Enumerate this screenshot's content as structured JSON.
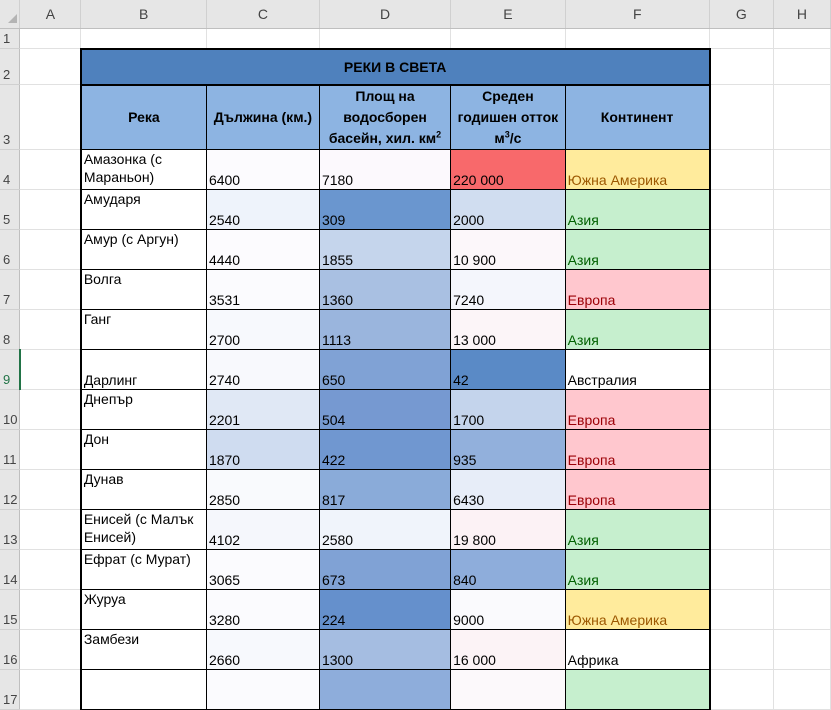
{
  "columns": [
    "A",
    "B",
    "C",
    "D",
    "E",
    "F",
    "G",
    "H"
  ],
  "title": "РЕКИ В СВЕТА",
  "headers": {
    "river": "Река",
    "length": "Дължина (км.)",
    "basin": "Площ на водосборен басейн, хил. км",
    "basin_sup": "2",
    "flow_a": "Среден годишен отток",
    "flow_m": "м",
    "flow_sup": "3",
    "flow_s": "/с",
    "continent": "Континент"
  },
  "continent_styles": {
    "Южна Америка": {
      "bg": "#ffeb9c",
      "fg": "#9c5700"
    },
    "Азия": {
      "bg": "#c6efce",
      "fg": "#006100"
    },
    "Европа": {
      "bg": "#ffc7ce",
      "fg": "#9c0006"
    },
    "Австралия": {
      "bg": "#ffffff",
      "fg": "#000000"
    },
    "Африка": {
      "bg": "#ffffff",
      "fg": "#000000"
    }
  },
  "selected_row": 9,
  "rows": [
    {
      "row": 4,
      "river": "Амазонка (с Мараньон)",
      "length": "6400",
      "basin": "7180",
      "flow": "220 000",
      "continent": "Южна Америка",
      "c_bg": "#fcfbfe",
      "d_bg": "#fcf9fd",
      "e_bg": "#f8696b"
    },
    {
      "row": 5,
      "river": "Амударя",
      "length": "2540",
      "basin": "309",
      "flow": "2000",
      "continent": "Азия",
      "c_bg": "#eef3fb",
      "d_bg": "#6a96cf",
      "e_bg": "#d0ddf0"
    },
    {
      "row": 6,
      "river": "Амур (с Аргун)",
      "length": "4440",
      "basin": "1855",
      "flow": "10 900",
      "continent": "Азия",
      "c_bg": "#fcfbfe",
      "d_bg": "#c5d5ec",
      "e_bg": "#fcf7fa"
    },
    {
      "row": 7,
      "river": "Волга",
      "length": "3531",
      "basin": "1360",
      "flow": "7240",
      "continent": "Европа",
      "c_bg": "#fbfbfe",
      "d_bg": "#a9c0e2",
      "e_bg": "#f4f6fc"
    },
    {
      "row": 8,
      "river": "Ганг",
      "length": "2700",
      "basin": "1113",
      "flow": "13 000",
      "continent": "Азия",
      "c_bg": "#f7f9fd",
      "d_bg": "#9ab5dd",
      "e_bg": "#fcf5f8"
    },
    {
      "row": 9,
      "river": "Дарлинг",
      "length": "2740",
      "basin": "650",
      "flow": "42",
      "continent": "Австралия",
      "c_bg": "#f8f9fd",
      "d_bg": "#80a2d5",
      "e_bg": "#5a8ac6"
    },
    {
      "row": 10,
      "river": "Днепър",
      "length": "2201",
      "basin": "504",
      "flow": "1700",
      "continent": "Европа",
      "c_bg": "#e0e8f5",
      "d_bg": "#7699d1",
      "e_bg": "#c4d4ec"
    },
    {
      "row": 11,
      "river": "Дон",
      "length": "1870",
      "basin": "422",
      "flow": "935",
      "continent": "Европа",
      "c_bg": "#cfdcf0",
      "d_bg": "#7097d0",
      "e_bg": "#92b0dc"
    },
    {
      "row": 12,
      "river": "Дунав",
      "length": "2850",
      "basin": "817",
      "flow": "6430",
      "continent": "Европа",
      "c_bg": "#f9fafd",
      "d_bg": "#8aabd9",
      "e_bg": "#e7edf8"
    },
    {
      "row": 13,
      "river": "Енисей (с Малък Енисей)",
      "length": "4102",
      "basin": "2580",
      "flow": "19 800",
      "continent": "Азия",
      "c_bg": "#f5f7fc",
      "d_bg": "#f0f4fb",
      "e_bg": "#fcf2f5"
    },
    {
      "row": 14,
      "river": "Ефрат (с Мурат)",
      "length": "3065",
      "basin": "673",
      "flow": "840",
      "continent": "Азия",
      "c_bg": "#fbfbfe",
      "d_bg": "#80a2d5",
      "e_bg": "#8eaddb"
    },
    {
      "row": 15,
      "river": "Журуа",
      "length": "3280",
      "basin": "224",
      "flow": "9000",
      "continent": "Южна Америка",
      "c_bg": "#fbfbfe",
      "d_bg": "#6590cc",
      "e_bg": "#fafafd"
    },
    {
      "row": 16,
      "river": "Замбези",
      "length": "2660",
      "basin": "1300",
      "flow": "16 000",
      "continent": "Африка",
      "c_bg": "#f7f9fd",
      "d_bg": "#a5bde1",
      "e_bg": "#fcf3f6"
    },
    {
      "row": 17,
      "river": "",
      "length": "",
      "basin": "",
      "flow": "",
      "continent": "",
      "c_bg": "#fbfbfe",
      "d_bg": "#8eaddb",
      "e_bg": "#fcf9fb",
      "f_bg": "#c6efce"
    }
  ]
}
